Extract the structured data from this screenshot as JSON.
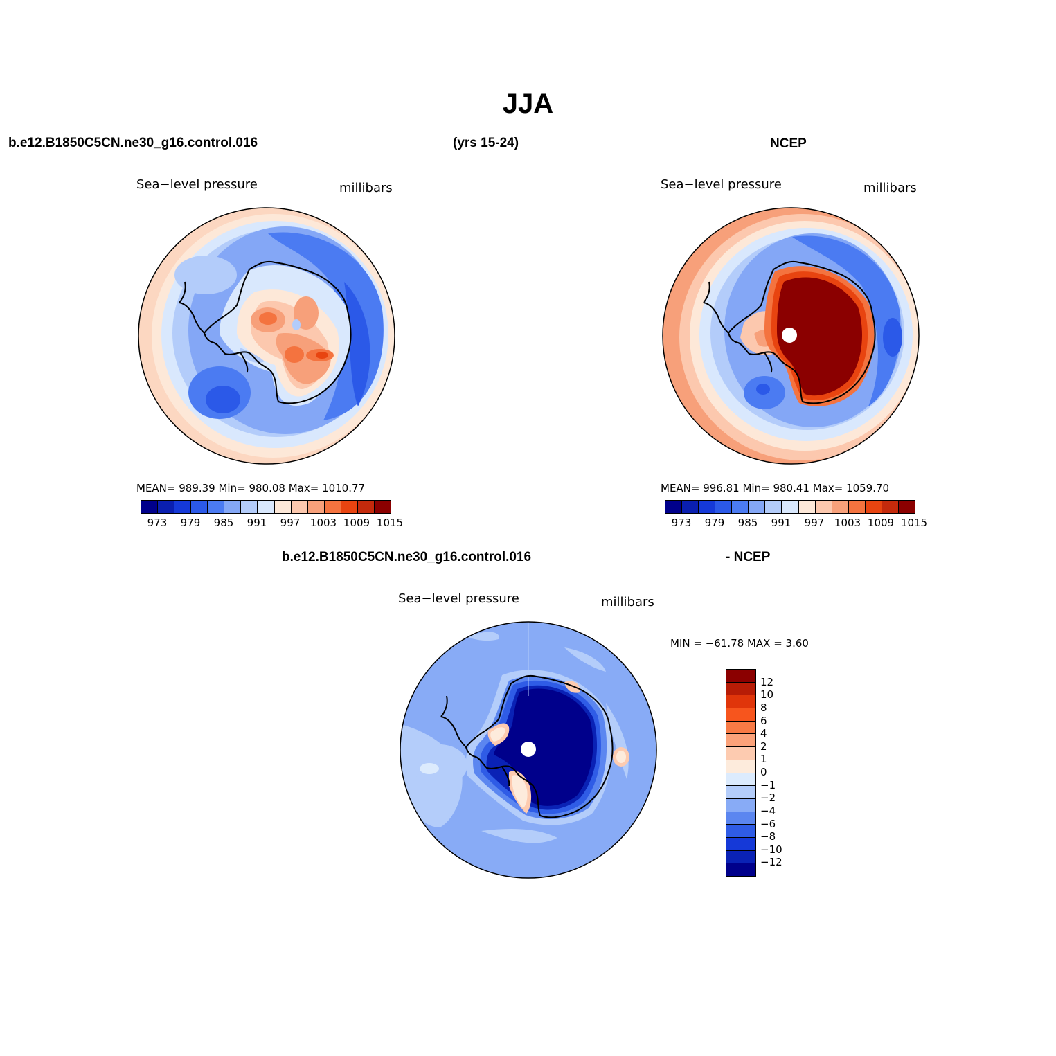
{
  "title": "JJA",
  "header": {
    "case_name": "b.e12.B1850C5CN.ne30_g16.control.016",
    "years": "(yrs 15-24)",
    "obs_name": "NCEP",
    "diff_case_name": "b.e12.B1850C5CN.ne30_g16.control.016",
    "diff_obs_name": "- NCEP"
  },
  "panels": {
    "model": {
      "variable": "Sea−level pressure",
      "units": "millibars",
      "stats": "MEAN=  989.39    Min=  980.08    Max=  1010.77"
    },
    "obs": {
      "variable": "Sea−level pressure",
      "units": "millibars",
      "stats": "MEAN=  996.81    Min=  980.41    Max=  1059.70"
    },
    "diff": {
      "variable": "Sea−level pressure",
      "units": "millibars",
      "stats": "MIN  =  −61.78  MAX  =     3.60"
    }
  },
  "colorbar_main": {
    "colors": [
      "#00008b",
      "#0a1fb0",
      "#1539d8",
      "#2b59e8",
      "#4b7bf2",
      "#84a7f6",
      "#b3ccfa",
      "#d9e8fd",
      "#fde8d8",
      "#fcc8ae",
      "#f7a07a",
      "#f4733f",
      "#e84410",
      "#c42a0c",
      "#8b0000"
    ],
    "tick_labels": [
      "973",
      "979",
      "985",
      "991",
      "997",
      "1003",
      "1009",
      "1015"
    ]
  },
  "colorbar_diff": {
    "colors": [
      "#8b0000",
      "#b71c06",
      "#e0350a",
      "#f7551d",
      "#f87a45",
      "#fba27a",
      "#fdcbb0",
      "#fdebdc",
      "#dcebfd",
      "#b4cdfa",
      "#88abf6",
      "#5b86f0",
      "#2f5ce6",
      "#1539d8",
      "#0a22b5",
      "#00008b"
    ],
    "tick_labels": [
      "12",
      "10",
      "8",
      "6",
      "4",
      "2",
      "1",
      "0",
      "−1",
      "−2",
      "−4",
      "−6",
      "−8",
      "−10",
      "−12"
    ]
  }
}
